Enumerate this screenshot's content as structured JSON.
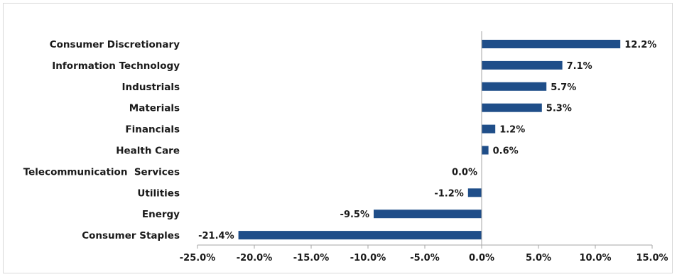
{
  "chart_data": {
    "type": "bar",
    "orientation": "horizontal",
    "categories": [
      "Consumer Discretionary",
      "Information Technology",
      "Industrials",
      "Materials",
      "Financials",
      "Health Care",
      "Telecommunication  Services",
      "Utilities",
      "Energy",
      "Consumer Staples"
    ],
    "values": [
      12.2,
      7.1,
      5.7,
      5.3,
      1.2,
      0.6,
      0.0,
      -1.2,
      -9.5,
      -21.4
    ],
    "value_labels": [
      "12.2%",
      "7.1%",
      "5.7%",
      "5.3%",
      "1.2%",
      "0.6%",
      "0.0%",
      "-1.2%",
      "-9.5%",
      "-21.4%"
    ],
    "xlim": [
      -25,
      15
    ],
    "xticks": [
      -25,
      -20,
      -15,
      -10,
      -5,
      0,
      5,
      10,
      15
    ],
    "xtick_labels": [
      "-25.0%",
      "-20.0%",
      "-15.0%",
      "-10.0%",
      "-5.0%",
      "0.0%",
      "5.0%",
      "10.0%",
      "15.0%"
    ],
    "bar_color": "#1f4e89",
    "grid": false,
    "legend": "none",
    "title": "",
    "xlabel": "",
    "ylabel": ""
  }
}
